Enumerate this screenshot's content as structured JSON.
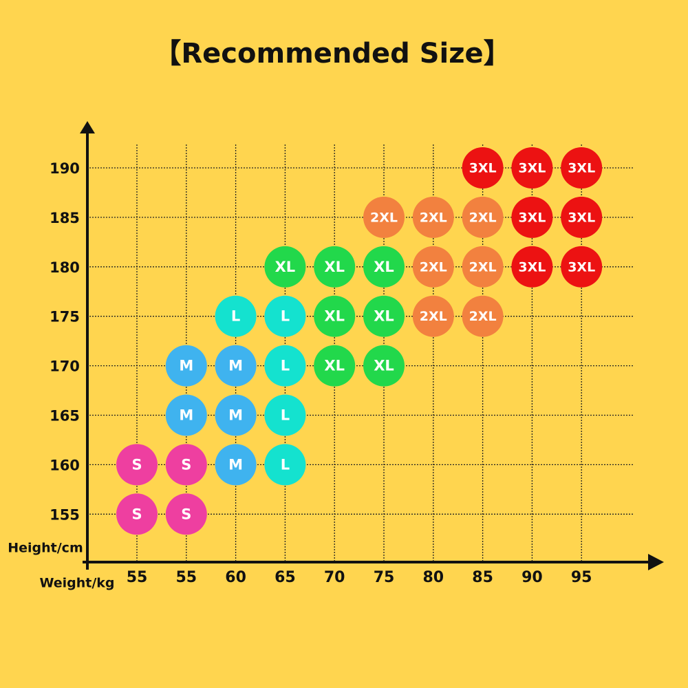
{
  "title": "【Recommended Size】",
  "y_axis_label": "Height/cm",
  "x_axis_label": "Weight/kg",
  "weights": [
    55,
    55,
    60,
    65,
    70,
    75,
    80,
    85,
    90,
    95
  ],
  "colors": {
    "S": "#ee3fa0",
    "M": "#3fb3ef",
    "L": "#14e2cf",
    "XL": "#22d84b",
    "2XL": "#f2813f",
    "3XL": "#ec1212"
  },
  "rows": [
    {
      "height": 190,
      "sizes": [
        null,
        null,
        null,
        null,
        null,
        null,
        null,
        "3XL",
        "3XL",
        "3XL"
      ]
    },
    {
      "height": 185,
      "sizes": [
        null,
        null,
        null,
        null,
        null,
        "2XL",
        "2XL",
        "2XL",
        "3XL",
        "3XL"
      ]
    },
    {
      "height": 180,
      "sizes": [
        null,
        null,
        null,
        "XL",
        "XL",
        "XL",
        "2XL",
        "2XL",
        "3XL",
        "3XL"
      ]
    },
    {
      "height": 175,
      "sizes": [
        null,
        null,
        "L",
        "L",
        "XL",
        "XL",
        "2XL",
        "2XL",
        null,
        null
      ]
    },
    {
      "height": 170,
      "sizes": [
        null,
        "M",
        "M",
        "L",
        "XL",
        "XL",
        null,
        null,
        null,
        null
      ]
    },
    {
      "height": 165,
      "sizes": [
        null,
        "M",
        "M",
        "L",
        null,
        null,
        null,
        null,
        null,
        null
      ]
    },
    {
      "height": 160,
      "sizes": [
        "S",
        "S",
        "M",
        "L",
        null,
        null,
        null,
        null,
        null,
        null
      ]
    },
    {
      "height": 155,
      "sizes": [
        "S",
        "S",
        null,
        null,
        null,
        null,
        null,
        null,
        null,
        null
      ]
    }
  ]
}
